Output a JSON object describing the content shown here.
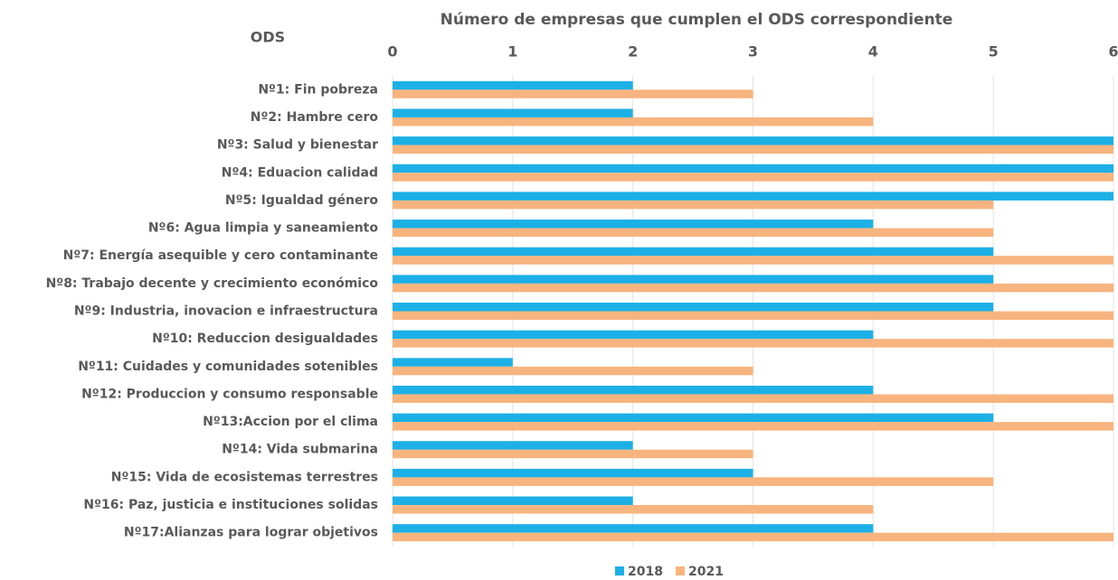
{
  "chart_data": {
    "type": "barh",
    "x_label": "Número de empresas que cumplen el ODS correspondiente",
    "y_label": "ODS",
    "categories": [
      "Nº1: Fin pobreza",
      "Nº2: Hambre cero",
      "Nº3: Salud y bienestar",
      "Nº4: Eduacion calidad",
      "Nº5: Igualdad género",
      "Nº6: Agua limpia y saneamiento",
      "Nº7: Energía asequible y cero contaminante",
      "Nº8: Trabajo decente y crecimiento económico",
      "Nº9: Industria, inovacion e infraestructura",
      "Nº10: Reduccion desigualdades",
      "Nº11: Cuidades y comunidades sotenibles",
      "Nº12: Produccion y consumo responsable",
      "Nº13:Accion por el clima",
      "Nº14: Vida submarina",
      "Nº15: Vida de ecosistemas terrestres",
      "Nº16: Paz, justicia e instituciones solidas",
      "Nº17:Alianzas para lograr objetivos"
    ],
    "series": [
      {
        "name": "2018",
        "color": "#1cb0e6",
        "values": [
          2,
          2,
          6,
          6,
          6,
          4,
          5,
          5,
          5,
          4,
          1,
          4,
          5,
          2,
          3,
          2,
          4
        ]
      },
      {
        "name": "2021",
        "color": "#f8b47e",
        "values": [
          3,
          4,
          6,
          6,
          5,
          5,
          6,
          6,
          6,
          6,
          3,
          6,
          6,
          3,
          5,
          4,
          6
        ]
      }
    ],
    "xlim": [
      0,
      6
    ],
    "xticks": [
      0,
      1,
      2,
      3,
      4,
      5,
      6
    ],
    "grid": true,
    "legend": "bottom"
  }
}
